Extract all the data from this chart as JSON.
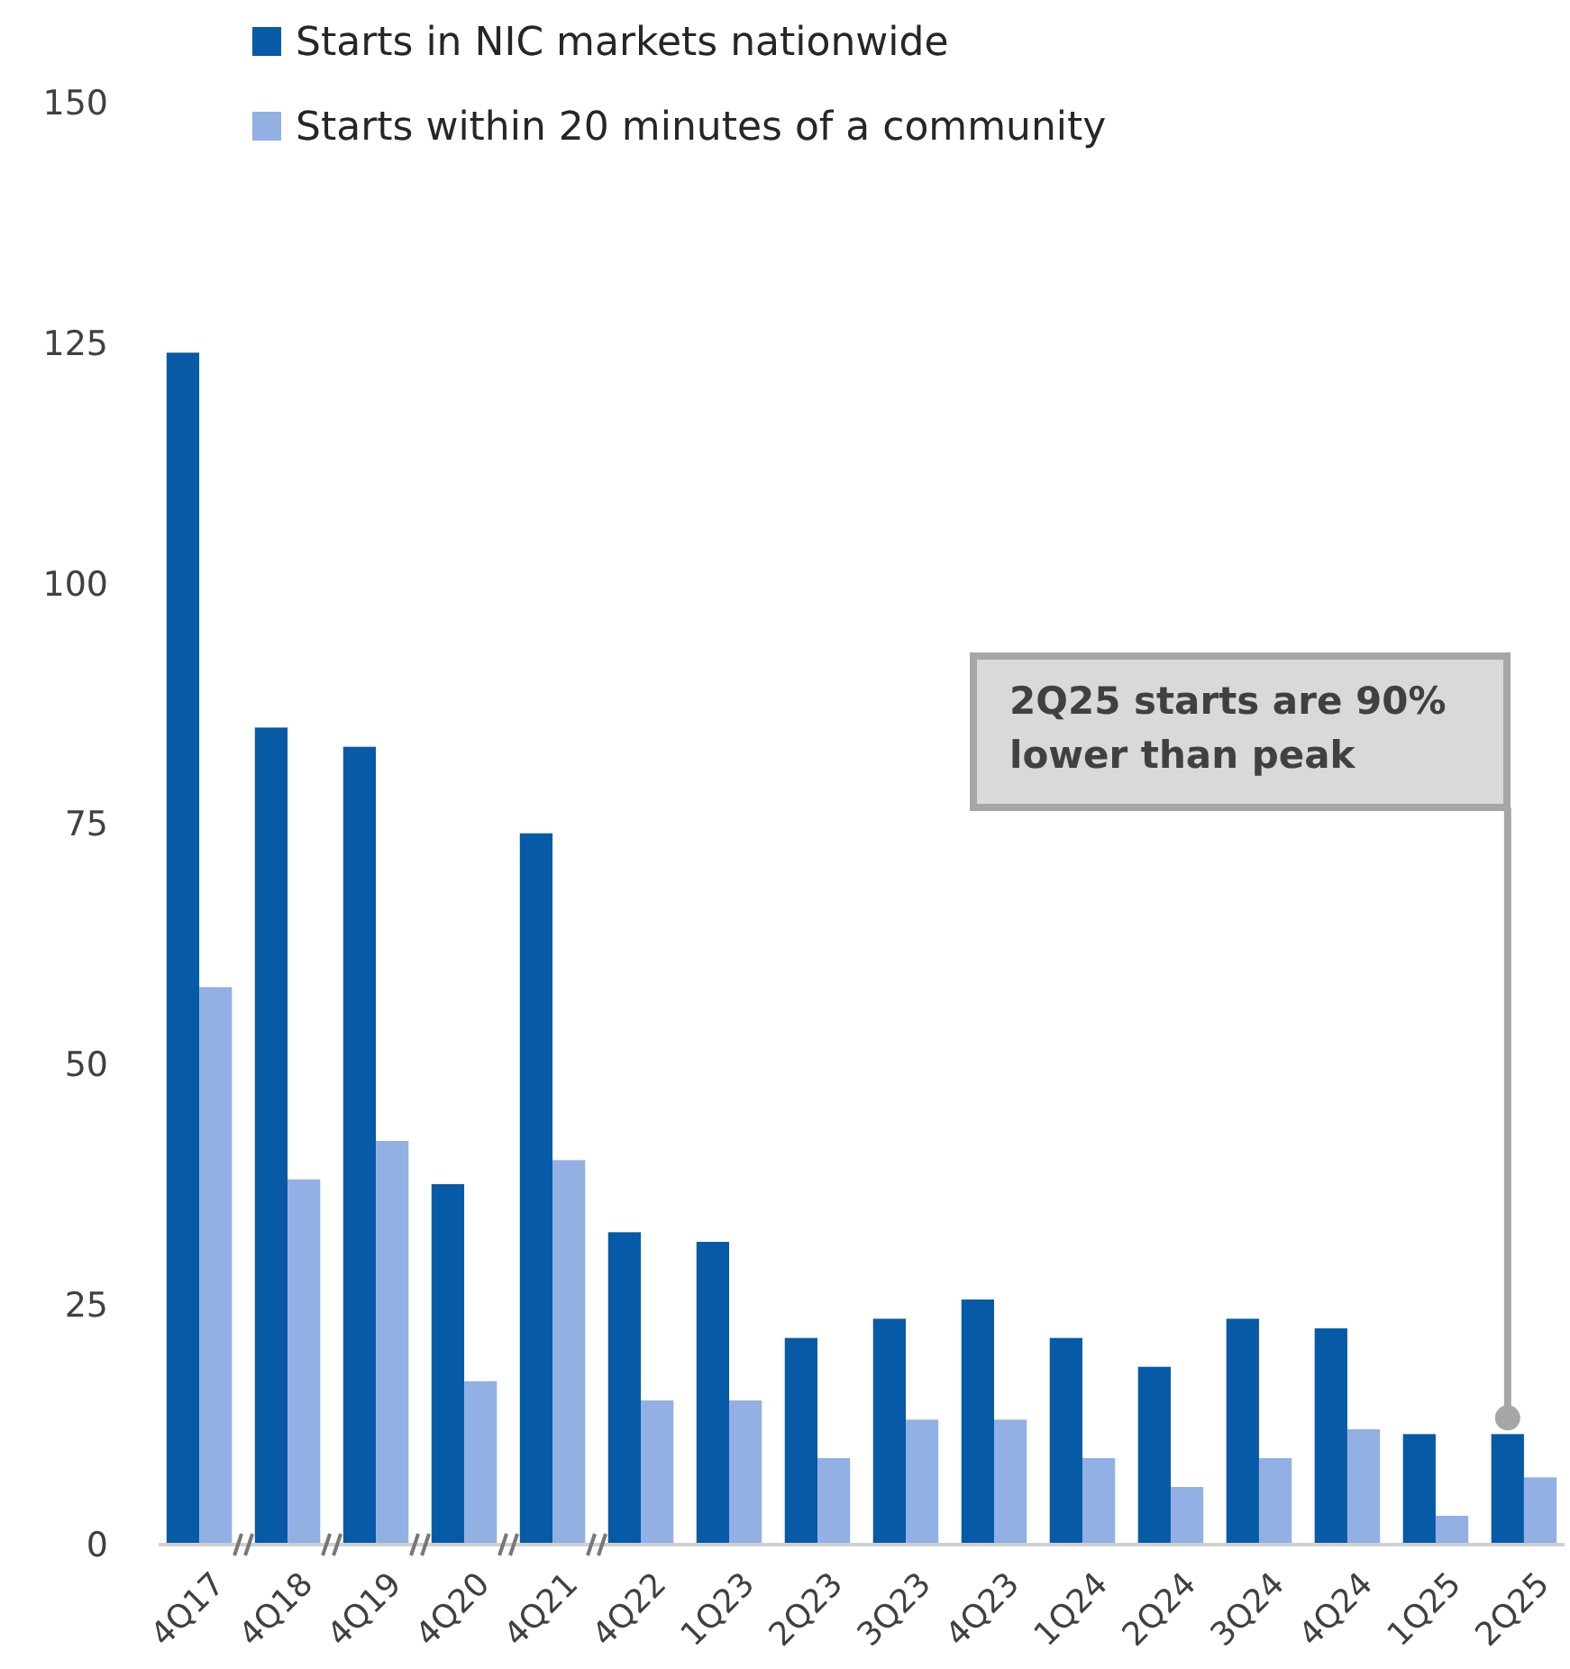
{
  "chart_data": {
    "type": "bar",
    "categories": [
      "4Q17",
      "4Q18",
      "4Q19",
      "4Q20",
      "4Q21",
      "4Q22",
      "1Q23",
      "2Q23",
      "3Q23",
      "4Q23",
      "1Q24",
      "2Q24",
      "3Q24",
      "4Q24",
      "1Q25",
      "2Q25"
    ],
    "series": [
      {
        "name": "Starts in NIC markets nationwide",
        "color": "#065aa6",
        "values": [
          124,
          85,
          83,
          37.5,
          74,
          32.5,
          31.5,
          21.5,
          23.5,
          25.5,
          21.5,
          18.5,
          23.5,
          22.5,
          11.5,
          11.5
        ]
      },
      {
        "name": "Starts within 20 minutes of a community",
        "color": "#92b0e3",
        "values": [
          58,
          38,
          42,
          17,
          40,
          15,
          15,
          9,
          13,
          13,
          9,
          6,
          9,
          12,
          3,
          7
        ]
      }
    ],
    "ylim": [
      0,
      150
    ],
    "yticks": [
      0,
      25,
      50,
      75,
      100,
      125,
      150
    ],
    "grid": false,
    "legend": "top",
    "annotations": [
      "2Q25 starts are 90% lower than peak"
    ]
  }
}
